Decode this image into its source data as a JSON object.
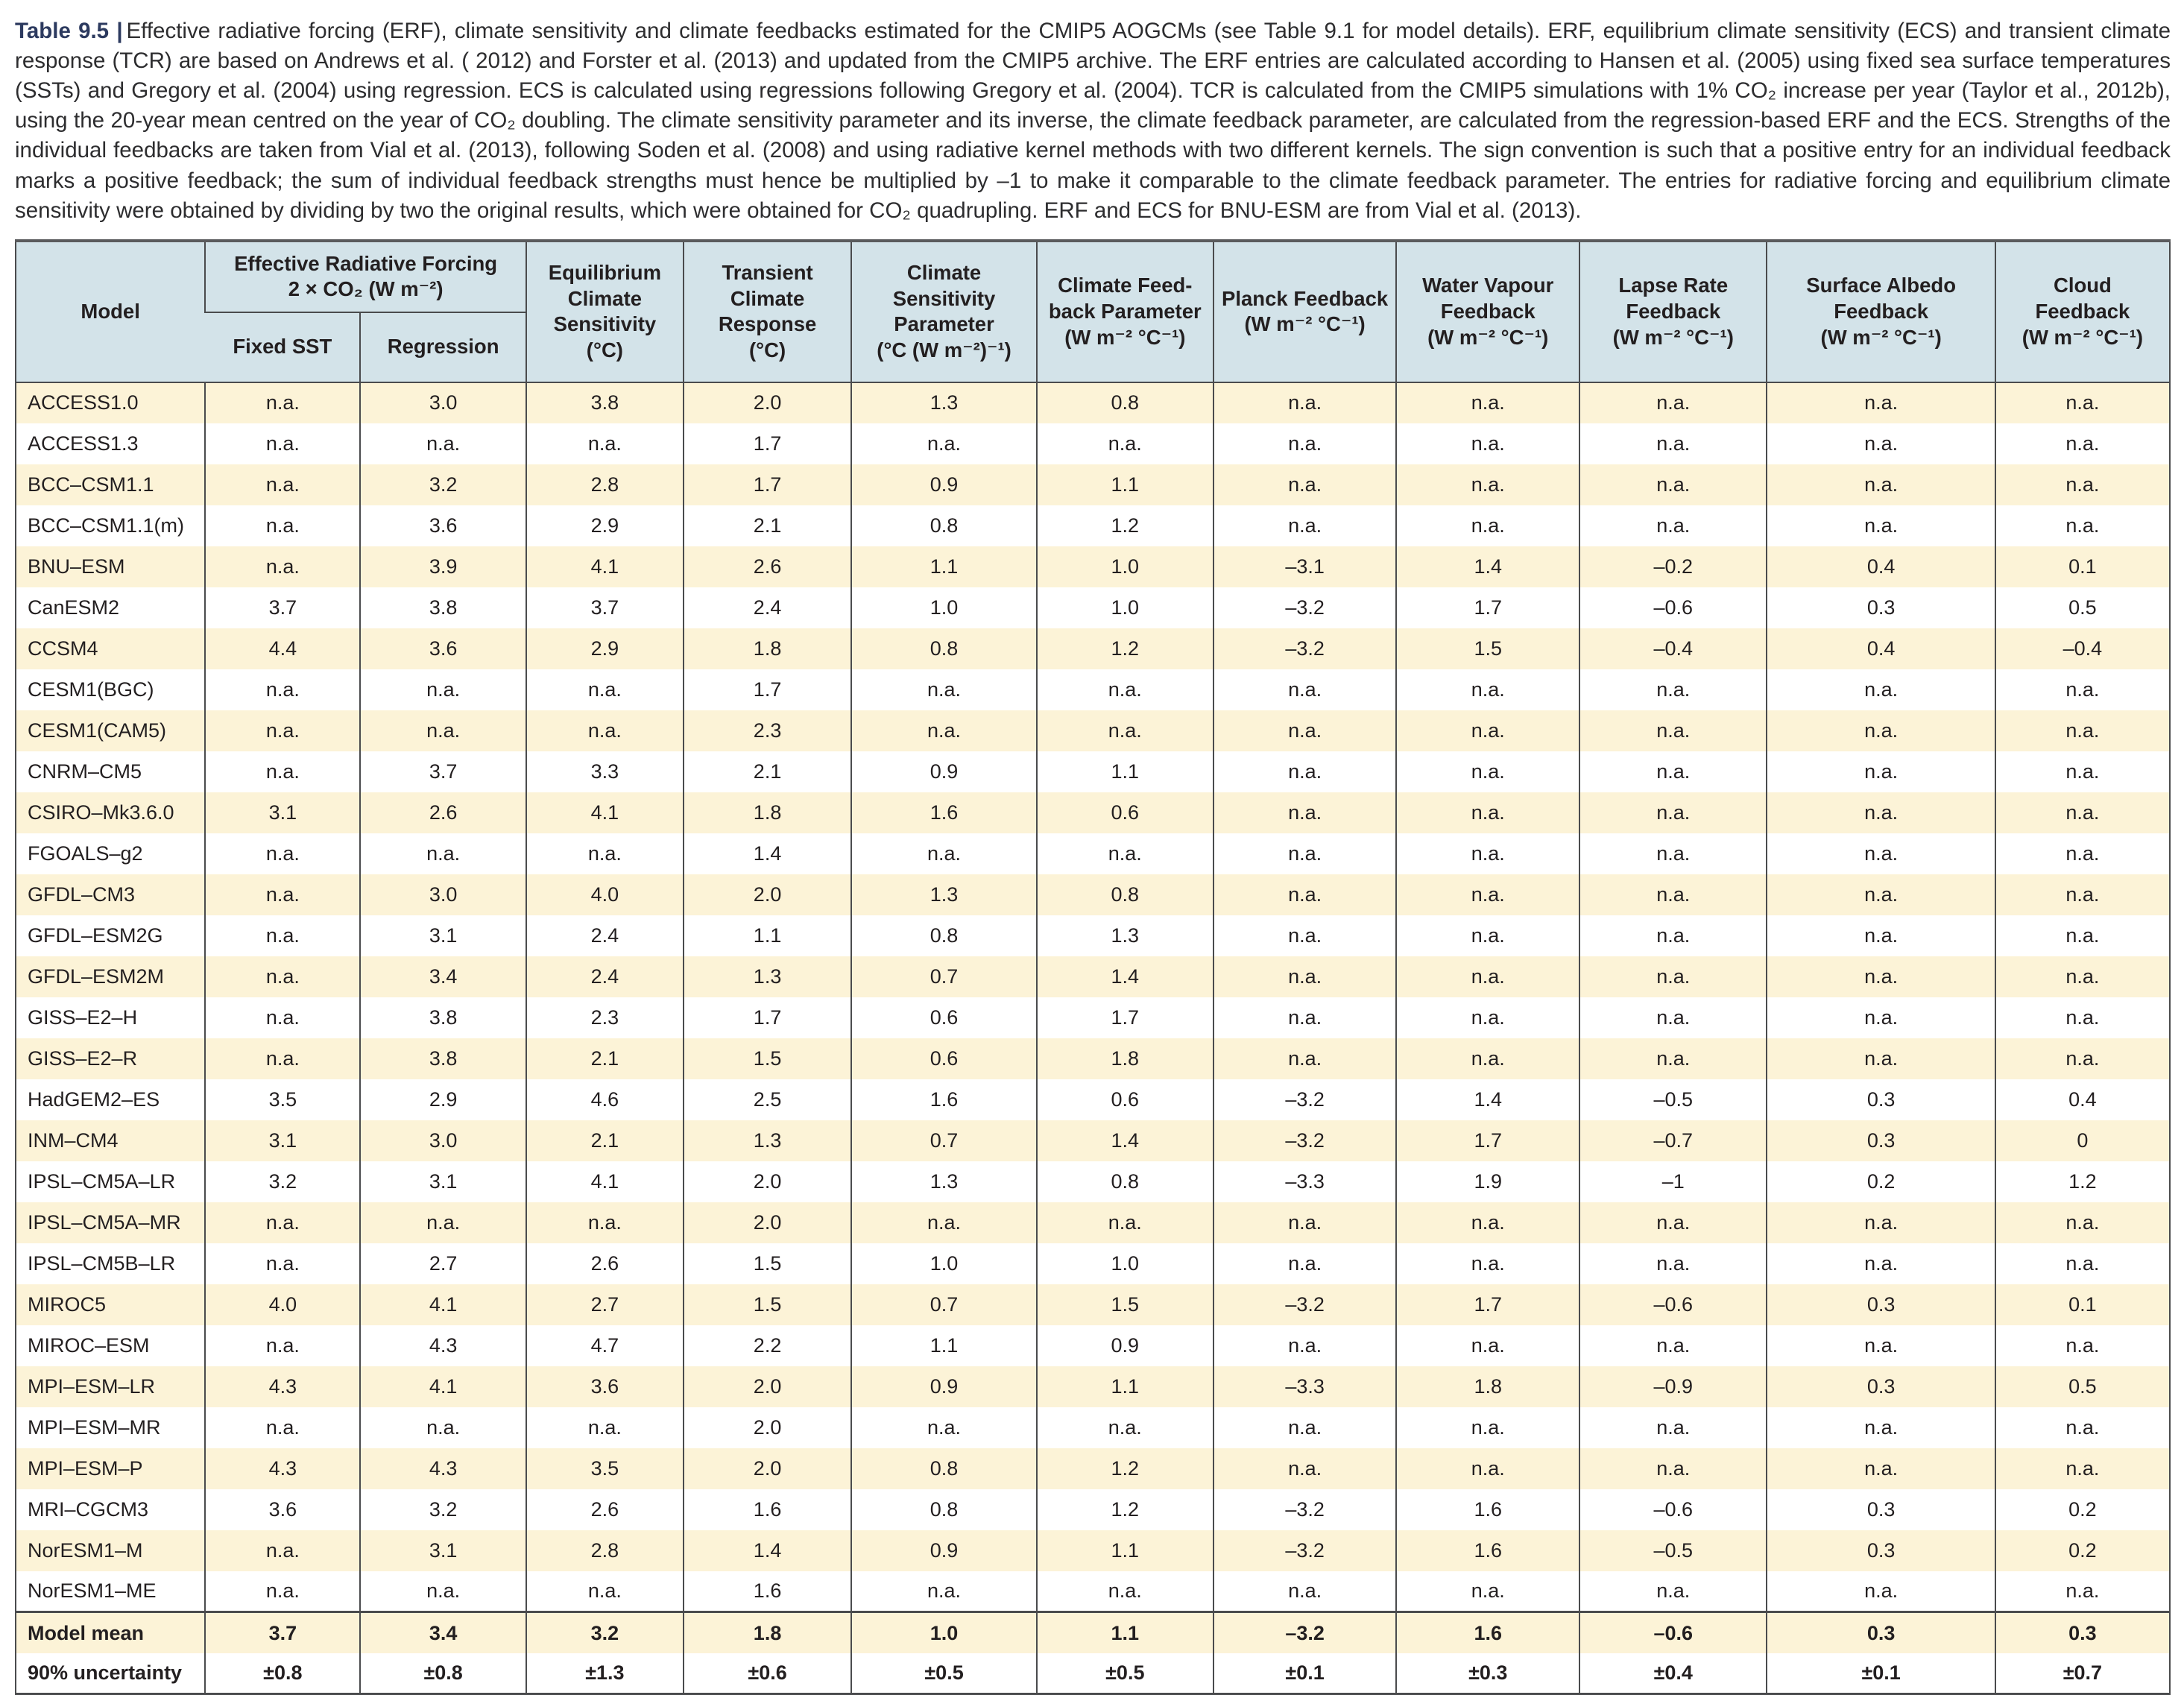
{
  "caption": {
    "label": "Table 9.5 |",
    "text": "Effective radiative forcing (ERF), climate sensitivity and climate feedbacks estimated for the CMIP5 AOGCMs (see Table 9.1 for model details). ERF, equilibrium climate sensitivity (ECS) and transient climate response (TCR) are based on Andrews et al. ( 2012) and Forster et al. (2013) and updated from the CMIP5 archive. The ERF entries are calculated according to Hansen et al. (2005) using fixed sea surface temperatures (SSTs) and Gregory et al. (2004) using regression. ECS is calculated using regressions following Gregory et al. (2004). TCR is calculated from the CMIP5 simulations with 1% CO₂ increase per year (Taylor et al., 2012b), using the 20-year mean centred on the year of CO₂ doubling. The climate sensitivity parameter and its inverse, the climate feedback parameter, are calculated from the regression-based ERF and the ECS. Strengths of the individual feedbacks are taken from Vial et al. (2013), following Soden et al. (2008) and using radiative kernel methods with two different kernels. The sign convention is such that a positive entry for an individual feedback marks a positive feedback; the sum of individual feedback strengths must hence be multiplied by –1 to make it comparable to the climate feedback parameter. The entries for radiative forcing and equilibrium climate sensitivity were obtained by dividing by two the original results, which were obtained for CO₂ quadrupling. ERF and ECS for BNU-ESM are from Vial et al. (2013)."
  },
  "table": {
    "header": {
      "model": "Model",
      "erf": {
        "label": "Effective Radiative Forcing",
        "unit": "2 × CO₂ (W m⁻²)",
        "sub": [
          "Fixed SST",
          "Regression"
        ]
      },
      "cols": [
        {
          "label": "Equilibrium Climate Sensitivity",
          "unit": "(°C)"
        },
        {
          "label": "Transient Climate Response",
          "unit": "(°C)"
        },
        {
          "label": "Climate Sensitivity Parameter",
          "unit": "(°C (W m⁻²)⁻¹)"
        },
        {
          "label": "Climate Feed-back Parameter",
          "unit": "(W m⁻² °C⁻¹)"
        },
        {
          "label": "Planck Feedback",
          "unit": "(W m⁻² °C⁻¹)"
        },
        {
          "label": "Water Vapour Feedback",
          "unit": "(W m⁻² °C⁻¹)"
        },
        {
          "label": "Lapse Rate Feedback",
          "unit": "(W m⁻² °C⁻¹)"
        },
        {
          "label": "Surface Albedo Feedback",
          "unit": "(W m⁻² °C⁻¹)"
        },
        {
          "label": "Cloud Feedback",
          "unit": "(W m⁻² °C⁻¹)"
        }
      ]
    },
    "column_ids": [
      "fixed-sst",
      "regression",
      "ecs",
      "tcr",
      "csp",
      "cfp",
      "planck",
      "water-vapour",
      "lapse-rate",
      "surface-albedo",
      "cloud"
    ],
    "rows": [
      {
        "model": "ACCESS1.0",
        "values": [
          "n.a.",
          "3.0",
          "3.8",
          "2.0",
          "1.3",
          "0.8",
          "n.a.",
          "n.a.",
          "n.a.",
          "n.a.",
          "n.a."
        ]
      },
      {
        "model": "ACCESS1.3",
        "values": [
          "n.a.",
          "n.a.",
          "n.a.",
          "1.7",
          "n.a.",
          "n.a.",
          "n.a.",
          "n.a.",
          "n.a.",
          "n.a.",
          "n.a."
        ]
      },
      {
        "model": "BCC–CSM1.1",
        "values": [
          "n.a.",
          "3.2",
          "2.8",
          "1.7",
          "0.9",
          "1.1",
          "n.a.",
          "n.a.",
          "n.a.",
          "n.a.",
          "n.a."
        ]
      },
      {
        "model": "BCC–CSM1.1(m)",
        "values": [
          "n.a.",
          "3.6",
          "2.9",
          "2.1",
          "0.8",
          "1.2",
          "n.a.",
          "n.a.",
          "n.a.",
          "n.a.",
          "n.a."
        ]
      },
      {
        "model": "BNU–ESM",
        "values": [
          "n.a.",
          "3.9",
          "4.1",
          "2.6",
          "1.1",
          "1.0",
          "–3.1",
          "1.4",
          "–0.2",
          "0.4",
          "0.1"
        ]
      },
      {
        "model": "CanESM2",
        "values": [
          "3.7",
          "3.8",
          "3.7",
          "2.4",
          "1.0",
          "1.0",
          "–3.2",
          "1.7",
          "–0.6",
          "0.3",
          "0.5"
        ]
      },
      {
        "model": "CCSM4",
        "values": [
          "4.4",
          "3.6",
          "2.9",
          "1.8",
          "0.8",
          "1.2",
          "–3.2",
          "1.5",
          "–0.4",
          "0.4",
          "–0.4"
        ]
      },
      {
        "model": "CESM1(BGC)",
        "values": [
          "n.a.",
          "n.a.",
          "n.a.",
          "1.7",
          "n.a.",
          "n.a.",
          "n.a.",
          "n.a.",
          "n.a.",
          "n.a.",
          "n.a."
        ]
      },
      {
        "model": "CESM1(CAM5)",
        "values": [
          "n.a.",
          "n.a.",
          "n.a.",
          "2.3",
          "n.a.",
          "n.a.",
          "n.a.",
          "n.a.",
          "n.a.",
          "n.a.",
          "n.a."
        ]
      },
      {
        "model": "CNRM–CM5",
        "values": [
          "n.a.",
          "3.7",
          "3.3",
          "2.1",
          "0.9",
          "1.1",
          "n.a.",
          "n.a.",
          "n.a.",
          "n.a.",
          "n.a."
        ]
      },
      {
        "model": "CSIRO–Mk3.6.0",
        "values": [
          "3.1",
          "2.6",
          "4.1",
          "1.8",
          "1.6",
          "0.6",
          "n.a.",
          "n.a.",
          "n.a.",
          "n.a.",
          "n.a."
        ]
      },
      {
        "model": "FGOALS–g2",
        "values": [
          "n.a.",
          "n.a.",
          "n.a.",
          "1.4",
          "n.a.",
          "n.a.",
          "n.a.",
          "n.a.",
          "n.a.",
          "n.a.",
          "n.a."
        ]
      },
      {
        "model": "GFDL–CM3",
        "values": [
          "n.a.",
          "3.0",
          "4.0",
          "2.0",
          "1.3",
          "0.8",
          "n.a.",
          "n.a.",
          "n.a.",
          "n.a.",
          "n.a."
        ]
      },
      {
        "model": "GFDL–ESM2G",
        "values": [
          "n.a.",
          "3.1",
          "2.4",
          "1.1",
          "0.8",
          "1.3",
          "n.a.",
          "n.a.",
          "n.a.",
          "n.a.",
          "n.a."
        ]
      },
      {
        "model": "GFDL–ESM2M",
        "values": [
          "n.a.",
          "3.4",
          "2.4",
          "1.3",
          "0.7",
          "1.4",
          "n.a.",
          "n.a.",
          "n.a.",
          "n.a.",
          "n.a."
        ]
      },
      {
        "model": "GISS–E2–H",
        "values": [
          "n.a.",
          "3.8",
          "2.3",
          "1.7",
          "0.6",
          "1.7",
          "n.a.",
          "n.a.",
          "n.a.",
          "n.a.",
          "n.a."
        ]
      },
      {
        "model": "GISS–E2–R",
        "values": [
          "n.a.",
          "3.8",
          "2.1",
          "1.5",
          "0.6",
          "1.8",
          "n.a.",
          "n.a.",
          "n.a.",
          "n.a.",
          "n.a."
        ]
      },
      {
        "model": "HadGEM2–ES",
        "values": [
          "3.5",
          "2.9",
          "4.6",
          "2.5",
          "1.6",
          "0.6",
          "–3.2",
          "1.4",
          "–0.5",
          "0.3",
          "0.4"
        ]
      },
      {
        "model": "INM–CM4",
        "values": [
          "3.1",
          "3.0",
          "2.1",
          "1.3",
          "0.7",
          "1.4",
          "–3.2",
          "1.7",
          "–0.7",
          "0.3",
          "0"
        ]
      },
      {
        "model": "IPSL–CM5A–LR",
        "values": [
          "3.2",
          "3.1",
          "4.1",
          "2.0",
          "1.3",
          "0.8",
          "–3.3",
          "1.9",
          "–1",
          "0.2",
          "1.2"
        ]
      },
      {
        "model": "IPSL–CM5A–MR",
        "values": [
          "n.a.",
          "n.a.",
          "n.a.",
          "2.0",
          "n.a.",
          "n.a.",
          "n.a.",
          "n.a.",
          "n.a.",
          "n.a.",
          "n.a."
        ]
      },
      {
        "model": "IPSL–CM5B–LR",
        "values": [
          "n.a.",
          "2.7",
          "2.6",
          "1.5",
          "1.0",
          "1.0",
          "n.a.",
          "n.a.",
          "n.a.",
          "n.a.",
          "n.a."
        ]
      },
      {
        "model": "MIROC5",
        "values": [
          "4.0",
          "4.1",
          "2.7",
          "1.5",
          "0.7",
          "1.5",
          "–3.2",
          "1.7",
          "–0.6",
          "0.3",
          "0.1"
        ]
      },
      {
        "model": "MIROC–ESM",
        "values": [
          "n.a.",
          "4.3",
          "4.7",
          "2.2",
          "1.1",
          "0.9",
          "n.a.",
          "n.a.",
          "n.a.",
          "n.a.",
          "n.a."
        ]
      },
      {
        "model": "MPI–ESM–LR",
        "values": [
          "4.3",
          "4.1",
          "3.6",
          "2.0",
          "0.9",
          "1.1",
          "–3.3",
          "1.8",
          "–0.9",
          "0.3",
          "0.5"
        ]
      },
      {
        "model": "MPI–ESM–MR",
        "values": [
          "n.a.",
          "n.a.",
          "n.a.",
          "2.0",
          "n.a.",
          "n.a.",
          "n.a.",
          "n.a.",
          "n.a.",
          "n.a.",
          "n.a."
        ]
      },
      {
        "model": "MPI–ESM–P",
        "values": [
          "4.3",
          "4.3",
          "3.5",
          "2.0",
          "0.8",
          "1.2",
          "n.a.",
          "n.a.",
          "n.a.",
          "n.a.",
          "n.a."
        ]
      },
      {
        "model": "MRI–CGCM3",
        "values": [
          "3.6",
          "3.2",
          "2.6",
          "1.6",
          "0.8",
          "1.2",
          "–3.2",
          "1.6",
          "–0.6",
          "0.3",
          "0.2"
        ]
      },
      {
        "model": "NorESM1–M",
        "values": [
          "n.a.",
          "3.1",
          "2.8",
          "1.4",
          "0.9",
          "1.1",
          "–3.2",
          "1.6",
          "–0.5",
          "0.3",
          "0.2"
        ]
      },
      {
        "model": "NorESM1–ME",
        "values": [
          "n.a.",
          "n.a.",
          "n.a.",
          "1.6",
          "n.a.",
          "n.a.",
          "n.a.",
          "n.a.",
          "n.a.",
          "n.a.",
          "n.a."
        ]
      }
    ],
    "summary_rows": [
      {
        "model": "Model mean",
        "values": [
          "3.7",
          "3.4",
          "3.2",
          "1.8",
          "1.0",
          "1.1",
          "–3.2",
          "1.6",
          "–0.6",
          "0.3",
          "0.3"
        ]
      },
      {
        "model": "90% uncertainty",
        "values": [
          "±0.8",
          "±0.8",
          "±1.3",
          "±0.6",
          "±0.5",
          "±0.5",
          "±0.1",
          "±0.3",
          "±0.4",
          "±0.1",
          "±0.7"
        ]
      }
    ]
  },
  "colors": {
    "header_bg": "#d3e3e9",
    "row_stripe_bg": "#fcf3d7",
    "caption_label_color": "#2c3a5f",
    "text_color": "#231f20",
    "border_color": "#4a4b4d"
  }
}
